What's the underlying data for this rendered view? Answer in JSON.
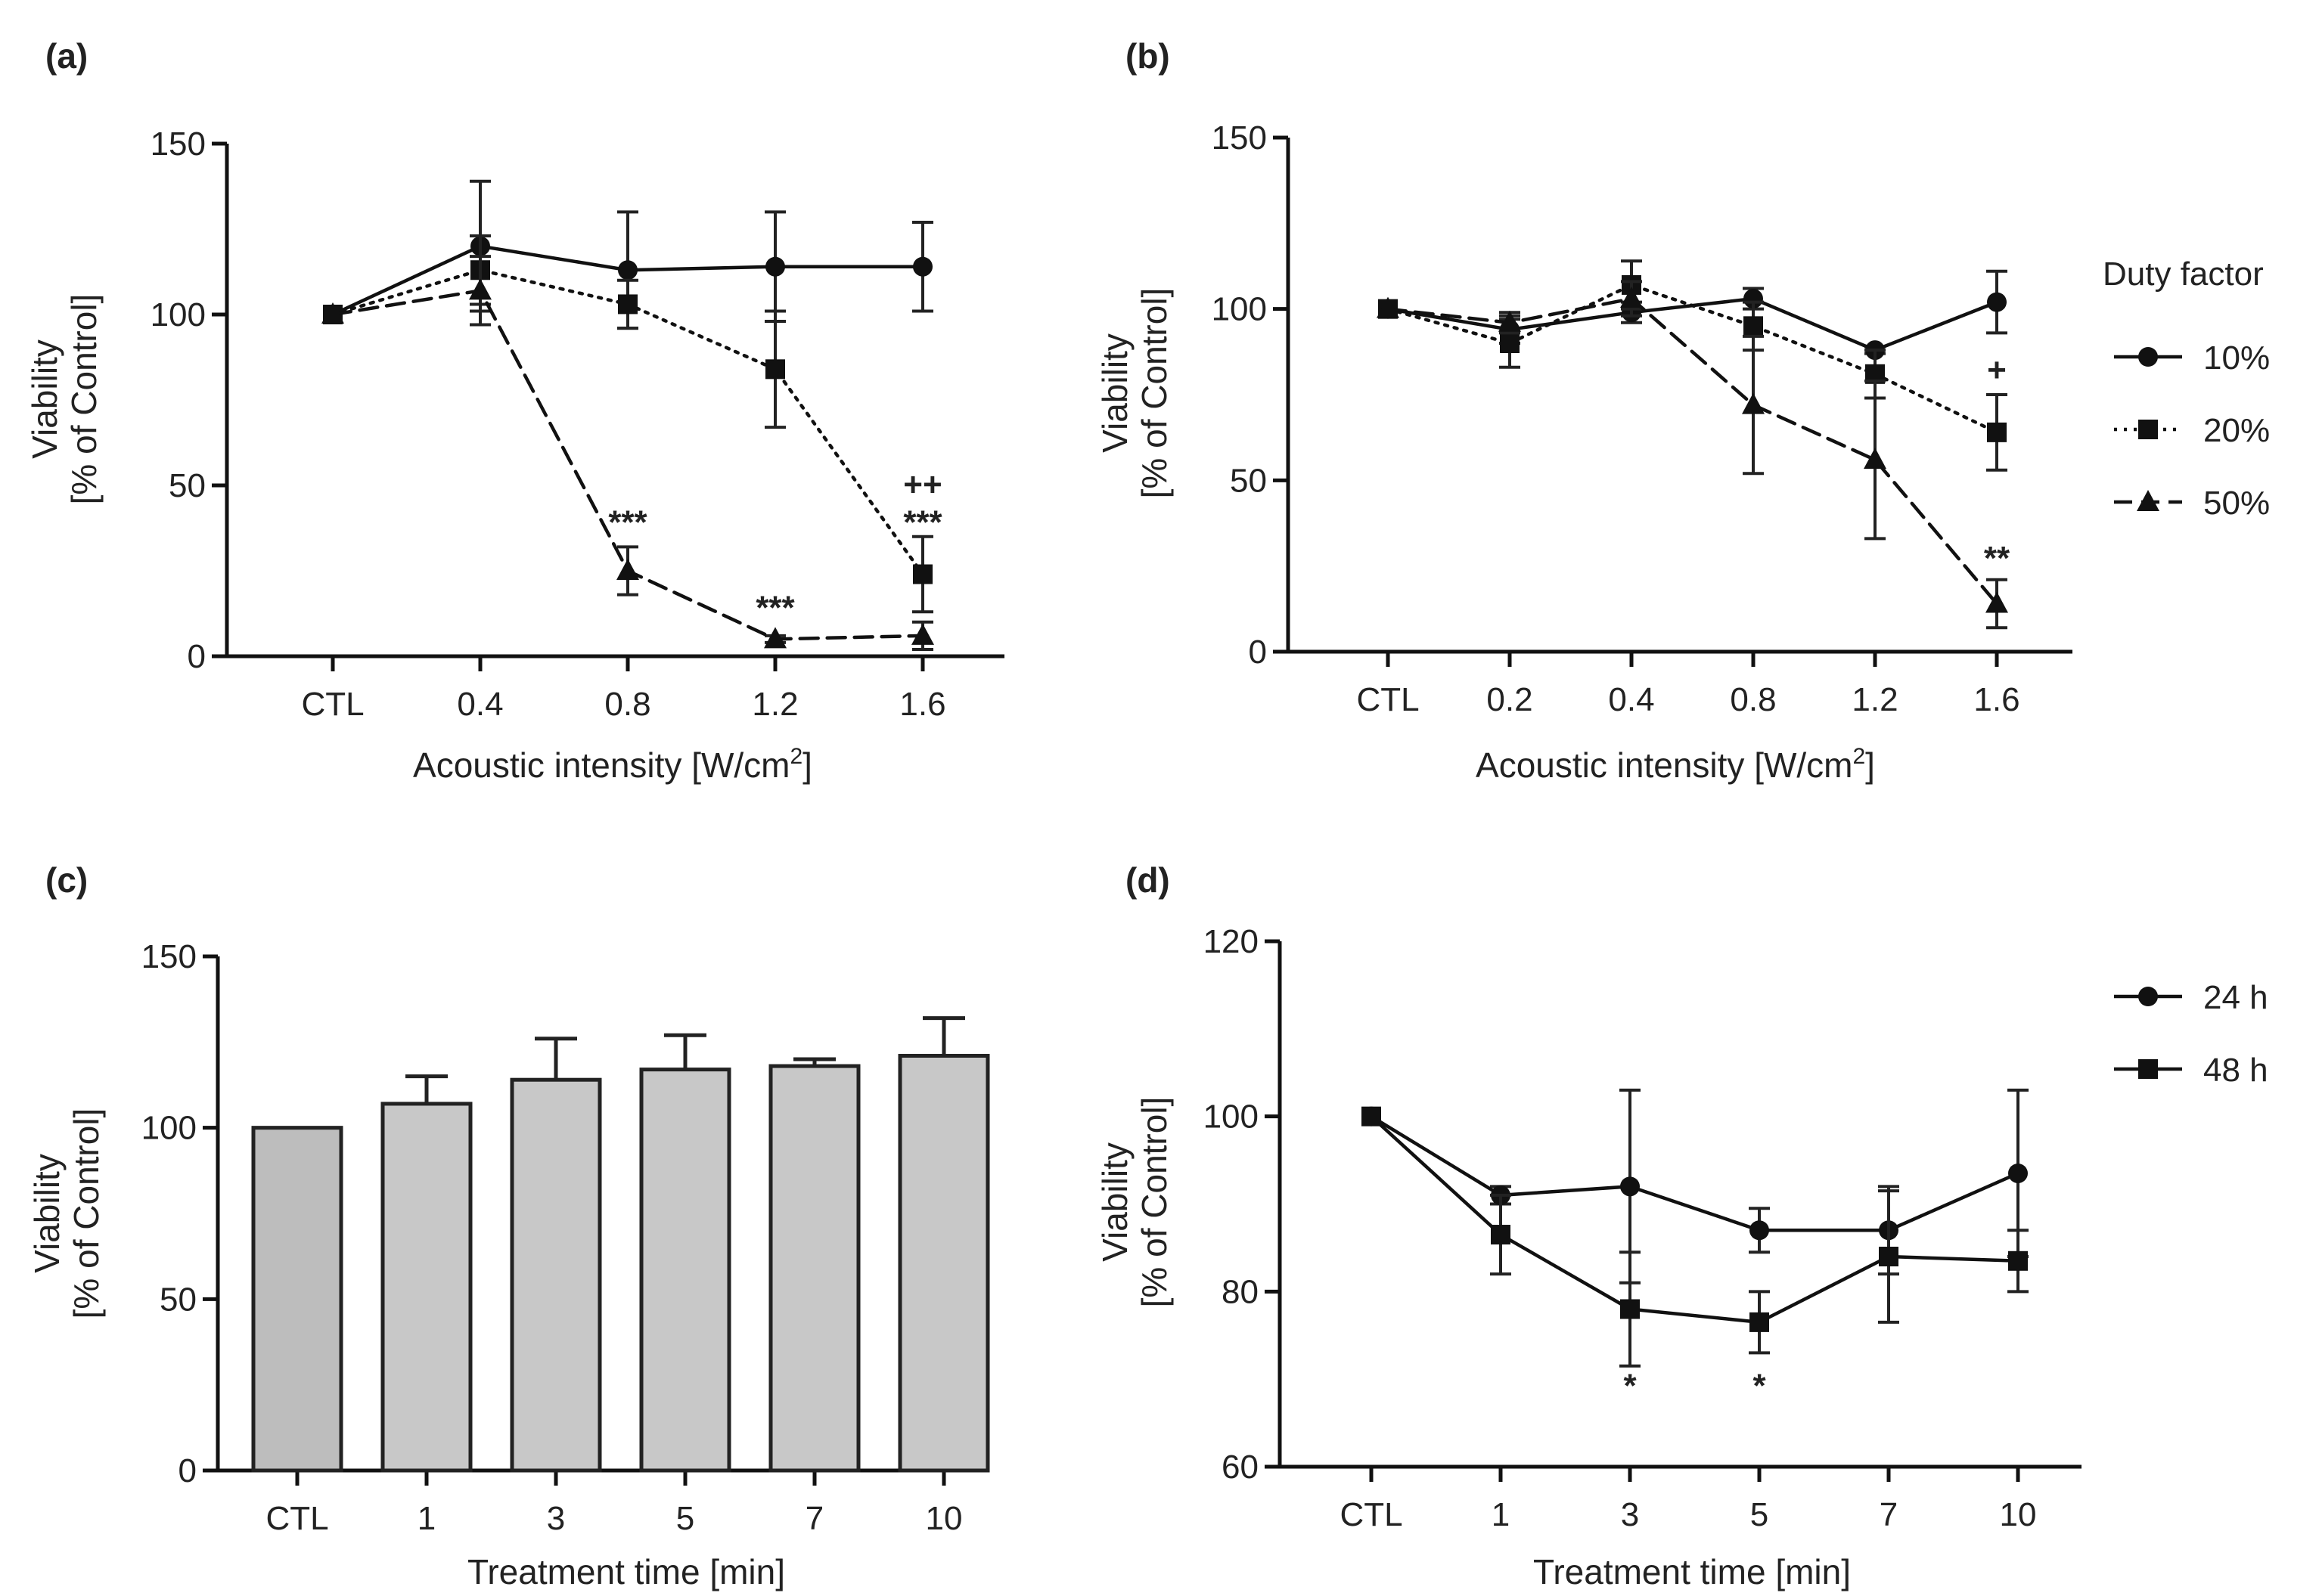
{
  "chart_data": [
    {
      "id": "a",
      "type": "line",
      "panel_label": "(a)",
      "xlabel_main": "Acoustic intensity [W/cm",
      "xlabel_sup": "2",
      "xlabel_end": "]",
      "ylabel_line1": "Viability",
      "ylabel_line2": "[% of Control]",
      "ylim": [
        0,
        150
      ],
      "yticks": [
        "0",
        "50",
        "100",
        "150"
      ],
      "categories": [
        "CTL",
        "0.4",
        "0.8",
        "1.2",
        "1.6"
      ],
      "series": [
        {
          "name": "10%",
          "marker": "circle",
          "dash": "solid",
          "values": [
            100,
            120,
            113,
            114,
            114
          ],
          "errors": [
            0,
            19,
            17,
            16,
            13
          ]
        },
        {
          "name": "20%",
          "marker": "square",
          "dash": "dotted",
          "values": [
            100,
            113,
            103,
            84,
            24
          ],
          "errors": [
            0,
            10,
            7,
            17,
            11
          ]
        },
        {
          "name": "50%",
          "marker": "triangle",
          "dash": "dashed",
          "values": [
            100,
            107,
            25,
            5,
            6
          ],
          "errors": [
            0,
            10,
            7,
            1,
            4
          ]
        }
      ],
      "annotations": [
        {
          "text": "***",
          "category": "0.8",
          "value": 36
        },
        {
          "text": "***",
          "category": "1.2",
          "value": 11
        },
        {
          "text": "***",
          "category": "1.6",
          "value": 36
        },
        {
          "text": "++",
          "category": "1.6",
          "value": 47
        }
      ]
    },
    {
      "id": "b",
      "type": "line",
      "panel_label": "(b)",
      "xlabel_main": "Acoustic intensity [W/cm",
      "xlabel_sup": "2",
      "xlabel_end": "]",
      "ylabel_line1": "Viability",
      "ylabel_line2": "[% of Control]",
      "ylim": [
        0,
        150
      ],
      "yticks": [
        "0",
        "50",
        "100",
        "150"
      ],
      "categories": [
        "CTL",
        "0.2",
        "0.4",
        "0.8",
        "1.2",
        "1.6"
      ],
      "legend_title": "Duty factor",
      "series": [
        {
          "name": "10%",
          "marker": "circle",
          "dash": "solid",
          "values": [
            100,
            94,
            99,
            103,
            88,
            102
          ],
          "errors": [
            0,
            4,
            3,
            3,
            1,
            9
          ]
        },
        {
          "name": "20%",
          "marker": "square",
          "dash": "dotted",
          "values": [
            100,
            90,
            107,
            95,
            81,
            64
          ],
          "errors": [
            0,
            7,
            7,
            7,
            7,
            11
          ]
        },
        {
          "name": "50%",
          "marker": "triangle",
          "dash": "dashed",
          "values": [
            100,
            96,
            103,
            72,
            56,
            14
          ],
          "errors": [
            0,
            3,
            5,
            20,
            23,
            7
          ]
        }
      ],
      "annotations": [
        {
          "text": "+",
          "category": "1.6",
          "value": 79
        },
        {
          "text": "**",
          "category": "1.6",
          "value": 24
        }
      ]
    },
    {
      "id": "c",
      "type": "bar",
      "panel_label": "(c)",
      "xlabel": "Treatment time [min]",
      "ylabel_line1": "Viability",
      "ylabel_line2": "[% of Control]",
      "ylim": [
        0,
        150
      ],
      "yticks": [
        "0",
        "50",
        "100",
        "150"
      ],
      "categories": [
        "CTL",
        "1",
        "3",
        "5",
        "7",
        "10"
      ],
      "values": [
        100,
        107,
        114,
        117,
        118,
        121
      ],
      "errors": [
        0,
        8,
        12,
        10,
        2,
        11
      ],
      "colors": [
        "#bdbdbd",
        "#c8c8c8",
        "#c8c8c8",
        "#c8c8c8",
        "#c8c8c8",
        "#c8c8c8"
      ]
    },
    {
      "id": "d",
      "type": "line",
      "panel_label": "(d)",
      "xlabel": "Treatment time [min]",
      "ylabel_line1": "Viability",
      "ylabel_line2": "[% of Control]",
      "ylim": [
        60,
        120
      ],
      "yticks": [
        "60",
        "80",
        "100",
        "120"
      ],
      "categories": [
        "CTL",
        "1",
        "3",
        "5",
        "7",
        "10"
      ],
      "series": [
        {
          "name": "24 h",
          "marker": "circle",
          "dash": "solid",
          "values": [
            100,
            91,
            92,
            87,
            87,
            93.5
          ],
          "errors": [
            0,
            1,
            11,
            2.5,
            5,
            9.5
          ]
        },
        {
          "name": "48 h",
          "marker": "square",
          "dash": "solid",
          "values": [
            100,
            86.5,
            78,
            76.5,
            84,
            83.5
          ],
          "errors": [
            0,
            4.5,
            6.5,
            3.5,
            7.5,
            3.5
          ]
        }
      ],
      "annotations": [
        {
          "text": "*",
          "category": "3",
          "value": 68
        },
        {
          "text": "*",
          "category": "5",
          "value": 68
        }
      ]
    }
  ]
}
